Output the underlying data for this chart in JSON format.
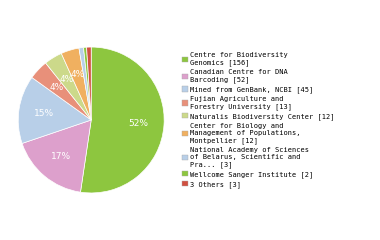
{
  "labels": [
    "Centre for Biodiversity\nGenomics [156]",
    "Canadian Centre for DNA\nBarcoding [52]",
    "Mined from GenBank, NCBI [45]",
    "Fujian Agriculture and\nForestry University [13]",
    "Naturalis Biodiversity Center [12]",
    "Center for Biology and\nManagement of Populations,\nMontpellier [12]",
    "National Academy of Sciences\nof Belarus, Scientific and\nPra... [3]",
    "Wellcome Sanger Institute [2]",
    "3 Others [3]"
  ],
  "values": [
    156,
    52,
    45,
    13,
    12,
    12,
    3,
    2,
    3
  ],
  "colors": [
    "#8dc63f",
    "#dda0cc",
    "#b8cfe8",
    "#e8907a",
    "#ccd98a",
    "#f0b060",
    "#b8cfe8",
    "#8dc63f",
    "#d05040"
  ],
  "startangle": 90,
  "background_color": "#ffffff",
  "legend_fontsize": 5.0,
  "pct_fontsize": 6.5
}
